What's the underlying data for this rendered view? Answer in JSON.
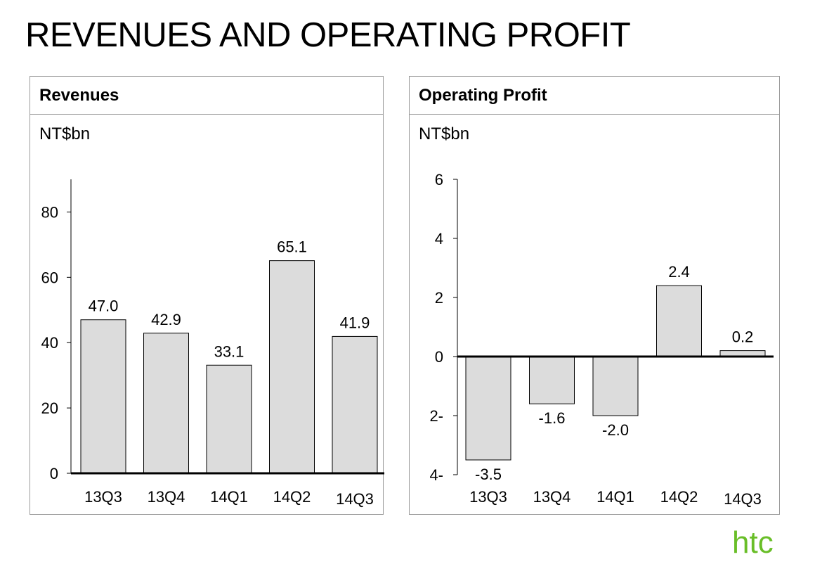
{
  "page": {
    "title": "REVENUES AND OPERATING PROFIT",
    "logo_text": "htc"
  },
  "colors": {
    "bar_fill": "#dcdcdc",
    "logo_green": "#69be28",
    "panel_border": "#9a9a9a"
  },
  "chart_data": [
    {
      "type": "bar",
      "title": "Revenues",
      "ylabel": "NT$bn",
      "categories": [
        "13Q3",
        "13Q4",
        "14Q1",
        "14Q2",
        "14Q3"
      ],
      "values": [
        47.0,
        42.9,
        33.1,
        65.1,
        41.9
      ],
      "value_labels": [
        "47.0",
        "42.9",
        "33.1",
        "65.1",
        "41.9"
      ],
      "yticks": [
        0,
        20,
        40,
        60,
        80
      ],
      "ytick_labels": [
        "0",
        "20",
        "40",
        "60",
        "80"
      ],
      "ylim": [
        0,
        90
      ],
      "grid": false,
      "legend": "none"
    },
    {
      "type": "bar",
      "title": "Operating Profit",
      "ylabel": "NT$bn",
      "categories": [
        "13Q3",
        "13Q4",
        "14Q1",
        "14Q2",
        "14Q3"
      ],
      "values": [
        -3.5,
        -1.6,
        -2.0,
        2.4,
        0.2
      ],
      "value_labels": [
        "-3.5",
        "-1.6",
        "-2.0",
        "2.4",
        "0.2"
      ],
      "yticks": [
        -4,
        -2,
        0,
        2,
        4,
        6
      ],
      "ytick_labels": [
        "4-",
        "2-",
        "0",
        "2",
        "4",
        "6"
      ],
      "ylim": [
        -4,
        6
      ],
      "grid": false,
      "legend": "none"
    }
  ]
}
